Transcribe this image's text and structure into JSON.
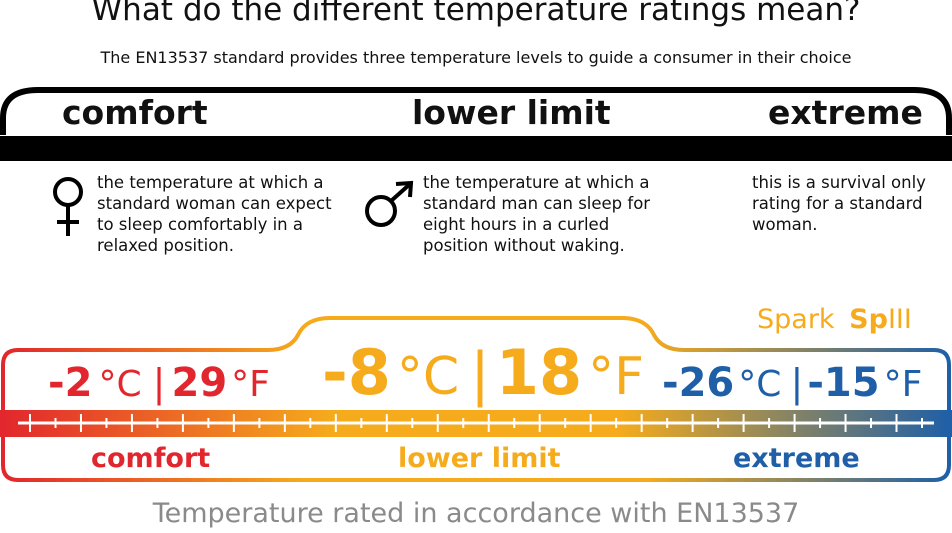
{
  "title": "What do the different temperature ratings mean?",
  "subtitle": "The EN13537 standard provides three temperature levels to guide a consumer in their choice",
  "banner": {
    "comfort_label": "comfort",
    "lower_limit_label": "lower limit",
    "extreme_label": "extreme"
  },
  "descriptions": {
    "comfort": {
      "icon": "female-symbol-icon",
      "lines": [
        "the temperature at which a",
        "standard woman can expect",
        "to sleep comfortably in a",
        "relaxed position."
      ]
    },
    "lower_limit": {
      "icon": "male-symbol-icon",
      "lines": [
        "the temperature at which a",
        "standard man can sleep for",
        "eight hours in a curled",
        "position without waking."
      ]
    },
    "extreme": {
      "lines": [
        "this is a survival only",
        "rating for a standard",
        "woman."
      ]
    }
  },
  "product": {
    "name_regular": "Spark",
    "name_bold": "Sp",
    "name_suffix": "III"
  },
  "ratings": {
    "comfort": {
      "celsius": "-2",
      "celsius_unit": "°C",
      "separator": "|",
      "fahrenheit": "29",
      "fahrenheit_unit": "°F",
      "label": "comfort"
    },
    "lower_limit": {
      "celsius": "-8",
      "celsius_unit": "°C",
      "separator": "|",
      "fahrenheit": "18",
      "fahrenheit_unit": "°F",
      "label": "lower limit"
    },
    "extreme": {
      "celsius": "-26",
      "celsius_unit": "°C",
      "separator": "|",
      "fahrenheit": "-15",
      "fahrenheit_unit": "°F",
      "label": "extreme"
    }
  },
  "footer": "Temperature rated in accordance with EN13537",
  "colors": {
    "comfort": "#e2262d",
    "lower_limit": "#f5ab1c",
    "extreme": "#1e5fa8",
    "banner": "#000000",
    "footer": "#8a8a8a"
  }
}
